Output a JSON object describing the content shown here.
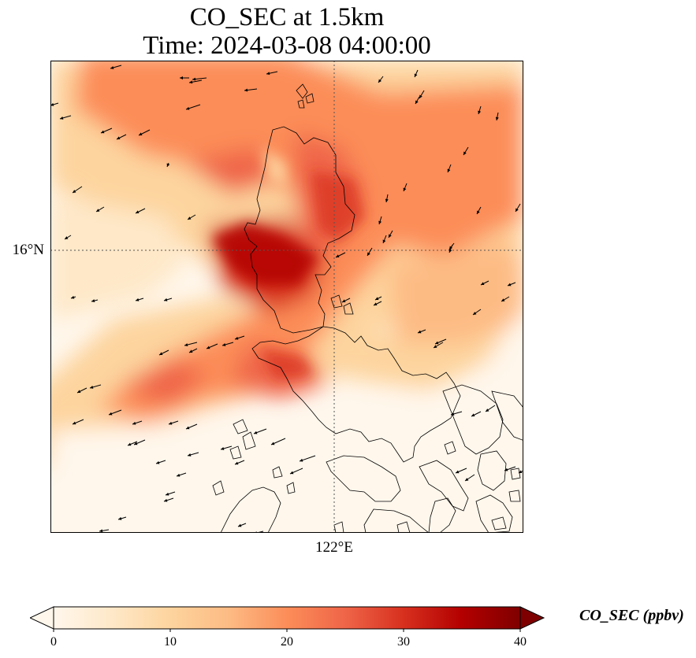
{
  "title": {
    "line1": "CO_SEC at 1.5km",
    "line2": "Time: 2024-03-08 04:00:00"
  },
  "axes": {
    "lat_tick": "16°N",
    "lon_tick": "122°E",
    "gridlines": "dotted"
  },
  "colorbar": {
    "label": "CO_SEC (ppbv)",
    "ticks": [
      "0",
      "10",
      "20",
      "30",
      "40"
    ],
    "range": [
      0,
      40
    ],
    "extend": "both",
    "colormap": "OrRd",
    "colors": [
      "#fff7ec",
      "#fee8c8",
      "#fdd49e",
      "#fdbb84",
      "#fc8d59",
      "#ef6548",
      "#d7301f",
      "#b30000",
      "#7f0000"
    ]
  },
  "map": {
    "field": "CO_SEC",
    "level": "1.5km",
    "features": [
      "concentration shading",
      "coastlines",
      "wind vectors"
    ]
  }
}
